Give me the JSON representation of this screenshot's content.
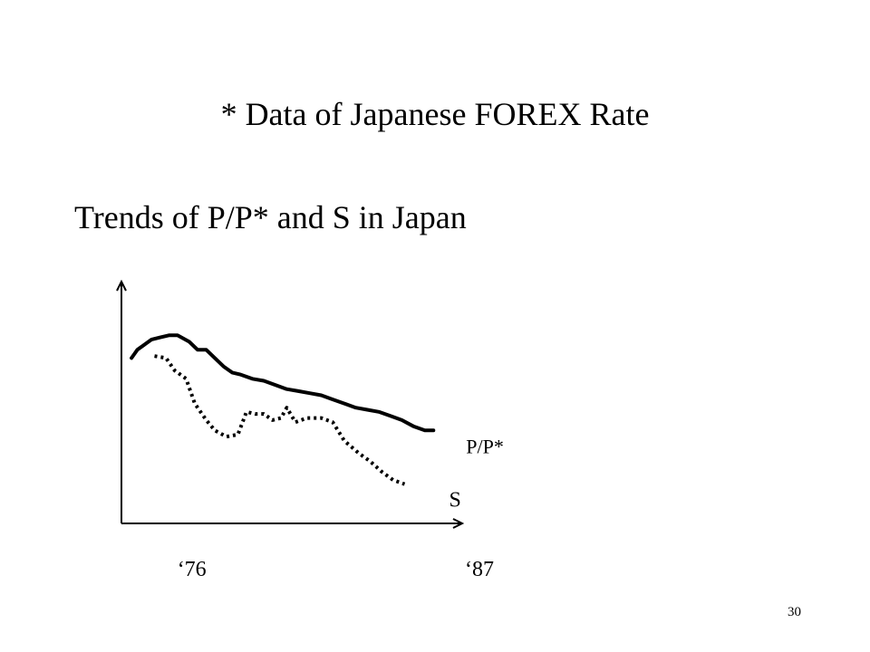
{
  "slide": {
    "heading": "* Data of Japanese FOREX Rate",
    "subheading": "Trends of P/P* and S in Japan",
    "page_number": "30"
  },
  "chart_data": {
    "type": "line",
    "title": "",
    "xlabel": "",
    "ylabel": "",
    "x_tick_labels": [
      "‘76",
      "‘87"
    ],
    "series": [
      {
        "name": "P/P*",
        "style": "solid",
        "color": "#000000",
        "x": [
          0.0,
          0.1,
          0.2,
          0.4,
          0.7,
          1.0,
          1.3,
          1.6,
          2.0,
          2.3,
          2.6,
          2.9,
          3.2,
          3.5,
          3.8,
          4.2,
          4.6,
          5.0,
          5.4,
          5.8,
          6.2,
          6.6,
          7.0,
          7.4,
          7.8,
          8.2,
          8.6,
          9.0,
          9.4,
          9.8,
          10.2,
          10.5
        ],
        "y": [
          80,
          82,
          84,
          86,
          89,
          90,
          91,
          91,
          88,
          84,
          84,
          80,
          76,
          73,
          72,
          70,
          69,
          67,
          65,
          64,
          63,
          62,
          60,
          58,
          56,
          55,
          54,
          52,
          50,
          47,
          45,
          45
        ]
      },
      {
        "name": "S",
        "style": "dotted",
        "color": "#000000",
        "x": [
          0.8,
          1.2,
          1.5,
          1.9,
          2.2,
          2.6,
          2.9,
          3.3,
          3.7,
          4.0,
          4.3,
          4.6,
          4.9,
          5.2,
          5.4,
          5.7,
          6.1,
          6.6,
          7.0,
          7.4,
          7.9,
          8.3,
          8.7,
          9.1,
          9.5
        ],
        "y": [
          81,
          80,
          74,
          70,
          58,
          50,
          45,
          42,
          43,
          54,
          53,
          53,
          50,
          51,
          56,
          49,
          51,
          51,
          49,
          40,
          34,
          30,
          25,
          21,
          19
        ]
      }
    ],
    "xlim": [
      -0.35,
      11.5
    ],
    "ylim": [
      0,
      117
    ],
    "grid": false,
    "legend": "line-end labels"
  }
}
